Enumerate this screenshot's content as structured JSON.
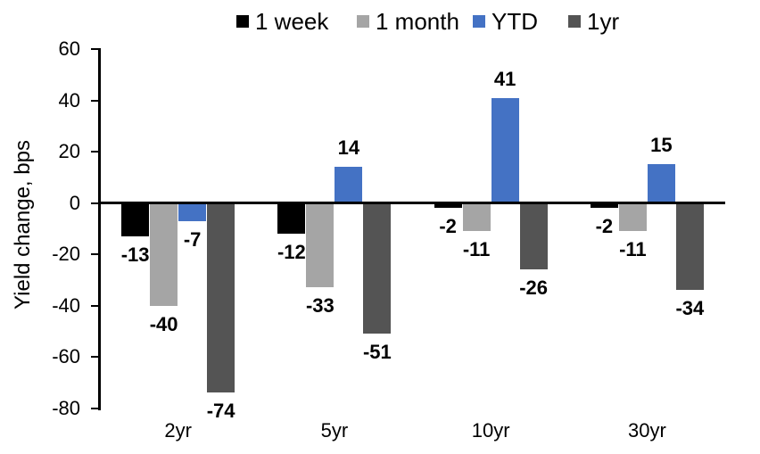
{
  "chart_data": {
    "type": "bar",
    "title": "",
    "ylabel": "Yield change, bps",
    "xlabel": "",
    "categories": [
      "2yr",
      "5yr",
      "10yr",
      "30yr"
    ],
    "series": [
      {
        "name": "1 week",
        "color": "#000000",
        "values": [
          -13,
          -12,
          -2,
          -2
        ]
      },
      {
        "name": "1 month",
        "color": "#A5A5A5",
        "values": [
          -40,
          -33,
          -11,
          -11
        ]
      },
      {
        "name": "YTD",
        "color": "#4472C4",
        "values": [
          -7,
          14,
          41,
          15
        ]
      },
      {
        "name": "1yr",
        "color": "#545454",
        "values": [
          -74,
          -51,
          -26,
          -34
        ]
      }
    ],
    "ylim": [
      -80,
      60
    ],
    "yticks": [
      60,
      40,
      20,
      0,
      -20,
      -40,
      -60,
      -80
    ],
    "data_labels": true,
    "grid": false,
    "legend_position": "top",
    "axis_color": "#000000",
    "background_color": "#FFFFFF"
  }
}
